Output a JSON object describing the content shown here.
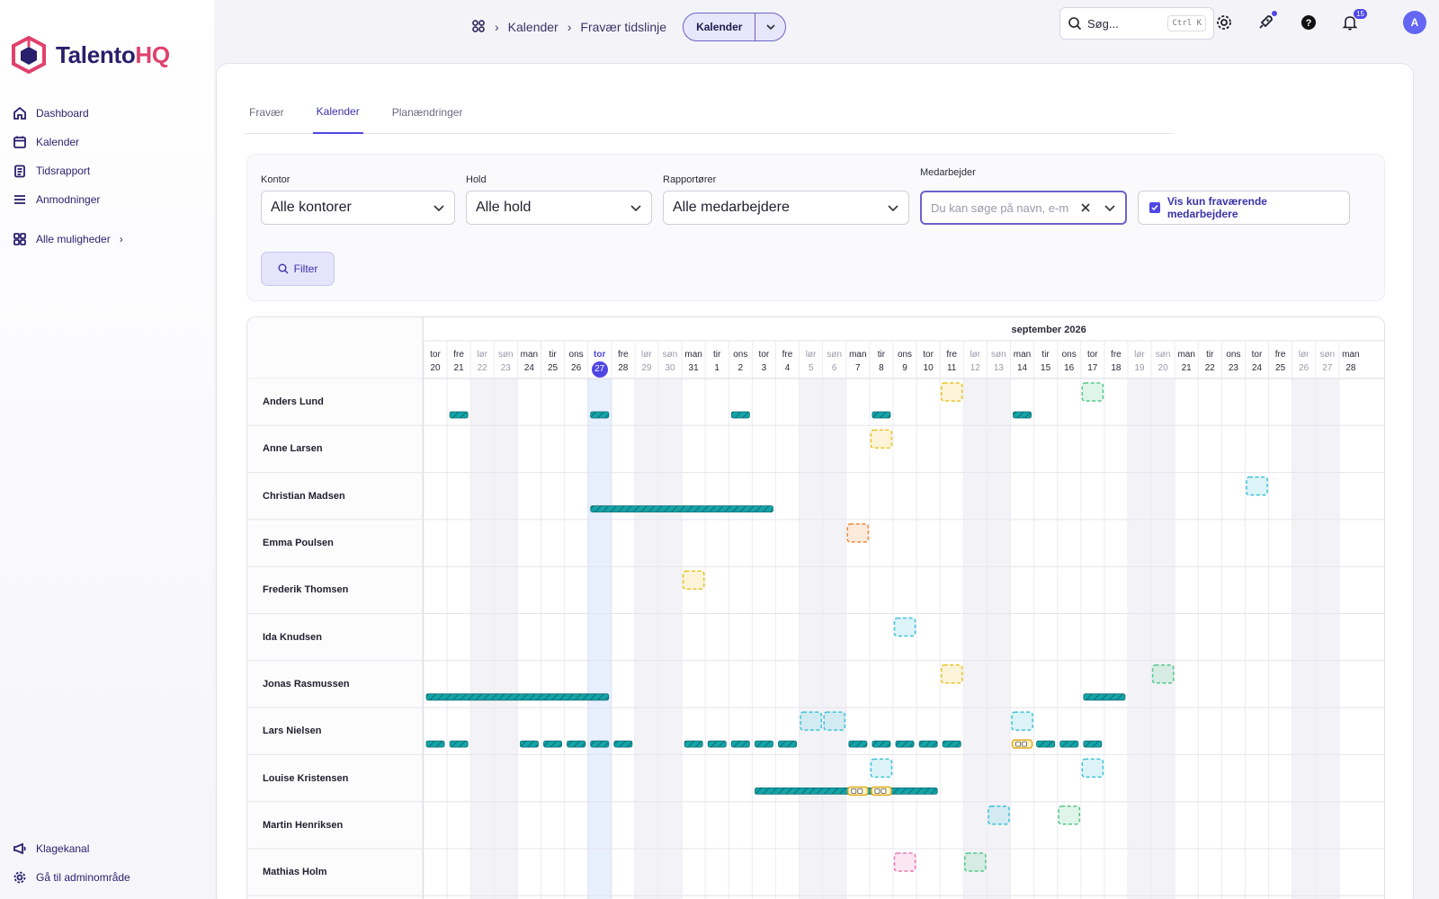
{
  "brand": {
    "name_part1": "Talento",
    "name_part2": "HQ"
  },
  "sidebar": {
    "items": [
      {
        "label": "Dashboard",
        "icon": "home-icon"
      },
      {
        "label": "Kalender",
        "icon": "calendar-icon"
      },
      {
        "label": "Tidsrapport",
        "icon": "clipboard-icon"
      },
      {
        "label": "Anmodninger",
        "icon": "list-icon"
      }
    ],
    "all_options": "Alle muligheder",
    "bottom": [
      {
        "label": "Klagekanal",
        "icon": "megaphone-icon"
      },
      {
        "label": "Gå til adminområde",
        "icon": "gear-icon"
      }
    ]
  },
  "topbar": {
    "breadcrumb": [
      "Kalender",
      "Fravær tidslinje"
    ],
    "view_button": "Kalender",
    "search_placeholder": "Søg...",
    "search_shortcut": "Ctrl K",
    "notification_count": "15",
    "avatar_initial": "A"
  },
  "tabs": [
    {
      "label": "Fravær",
      "active": false
    },
    {
      "label": "Kalender",
      "active": true
    },
    {
      "label": "Planændringer",
      "active": false
    }
  ],
  "filters": {
    "kontor": {
      "label": "Kontor",
      "value": "Alle kontorer"
    },
    "hold": {
      "label": "Hold",
      "value": "Alle hold"
    },
    "rapportorer": {
      "label": "Rapportører",
      "value": "Alle medarbejdere"
    },
    "medarbejder": {
      "label": "Medarbejder",
      "placeholder": "Du kan søge på navn, e-m"
    },
    "only_absent": "Vis kun fraværende medarbejdere",
    "filter_button": "Filter"
  },
  "timeline": {
    "month_label": "september 2026",
    "days": [
      {
        "w": "tor",
        "d": "20"
      },
      {
        "w": "fre",
        "d": "21"
      },
      {
        "w": "lør",
        "d": "22",
        "we": true
      },
      {
        "w": "søn",
        "d": "23",
        "we": true
      },
      {
        "w": "man",
        "d": "24"
      },
      {
        "w": "tir",
        "d": "25"
      },
      {
        "w": "ons",
        "d": "26"
      },
      {
        "w": "tor",
        "d": "27",
        "today": true
      },
      {
        "w": "fre",
        "d": "28"
      },
      {
        "w": "lør",
        "d": "29",
        "we": true
      },
      {
        "w": "søn",
        "d": "30",
        "we": true
      },
      {
        "w": "man",
        "d": "31"
      },
      {
        "w": "tir",
        "d": "1"
      },
      {
        "w": "ons",
        "d": "2"
      },
      {
        "w": "tor",
        "d": "3"
      },
      {
        "w": "fre",
        "d": "4"
      },
      {
        "w": "lør",
        "d": "5",
        "we": true
      },
      {
        "w": "søn",
        "d": "6",
        "we": true
      },
      {
        "w": "man",
        "d": "7"
      },
      {
        "w": "tir",
        "d": "8"
      },
      {
        "w": "ons",
        "d": "9"
      },
      {
        "w": "tor",
        "d": "10"
      },
      {
        "w": "fre",
        "d": "11"
      },
      {
        "w": "lør",
        "d": "12",
        "we": true
      },
      {
        "w": "søn",
        "d": "13",
        "we": true
      },
      {
        "w": "man",
        "d": "14"
      },
      {
        "w": "tir",
        "d": "15"
      },
      {
        "w": "ons",
        "d": "16"
      },
      {
        "w": "tor",
        "d": "17"
      },
      {
        "w": "fre",
        "d": "18"
      },
      {
        "w": "lør",
        "d": "19",
        "we": true
      },
      {
        "w": "søn",
        "d": "20",
        "we": true
      },
      {
        "w": "man",
        "d": "21"
      },
      {
        "w": "tir",
        "d": "22"
      },
      {
        "w": "ons",
        "d": "23"
      },
      {
        "w": "tor",
        "d": "24"
      },
      {
        "w": "fre",
        "d": "25"
      },
      {
        "w": "lør",
        "d": "26",
        "we": true
      },
      {
        "w": "søn",
        "d": "27",
        "we": true
      },
      {
        "w": "man",
        "d": "28"
      }
    ],
    "colors": {
      "bar": "#14a3a8",
      "yellow": "#e9c428",
      "green": "#53c98a",
      "cyan": "#3fc3d8",
      "orange": "#f08a3a",
      "pink": "#e979b8",
      "today_col": "#e8effd"
    },
    "employees": [
      {
        "name": "Anders Lund",
        "bars": [
          [
            1,
            1
          ],
          [
            7,
            7
          ],
          [
            13,
            13
          ],
          [
            19,
            19
          ],
          [
            25,
            25
          ]
        ],
        "boxes": [
          [
            22,
            "yellow"
          ],
          [
            28,
            "green"
          ]
        ]
      },
      {
        "name": "Anne Larsen",
        "bars": [],
        "boxes": [
          [
            19,
            "yellow"
          ]
        ]
      },
      {
        "name": "Christian Madsen",
        "bars": [
          [
            7,
            14
          ]
        ],
        "boxes": [
          [
            35,
            "cyan"
          ]
        ]
      },
      {
        "name": "Emma Poulsen",
        "bars": [],
        "boxes": [
          [
            18,
            "orange"
          ]
        ]
      },
      {
        "name": "Frederik Thomsen",
        "bars": [],
        "boxes": [
          [
            11,
            "yellow"
          ]
        ]
      },
      {
        "name": "Ida Knudsen",
        "bars": [],
        "boxes": [
          [
            20,
            "cyan"
          ]
        ]
      },
      {
        "name": "Jonas Rasmussen",
        "bars": [
          [
            0,
            7
          ],
          [
            28,
            29
          ]
        ],
        "boxes": [
          [
            22,
            "yellow"
          ],
          [
            31,
            "green"
          ]
        ]
      },
      {
        "name": "Lars Nielsen",
        "bars": [
          [
            0,
            0
          ],
          [
            1,
            1
          ],
          [
            4,
            4
          ],
          [
            5,
            5
          ],
          [
            6,
            6
          ],
          [
            7,
            7
          ],
          [
            8,
            8
          ],
          [
            11,
            11
          ],
          [
            12,
            12
          ],
          [
            13,
            13
          ],
          [
            14,
            14
          ],
          [
            15,
            15
          ],
          [
            18,
            18
          ],
          [
            19,
            19
          ],
          [
            20,
            20
          ],
          [
            21,
            21
          ],
          [
            22,
            22
          ],
          [
            25,
            25
          ],
          [
            26,
            26
          ],
          [
            27,
            27
          ],
          [
            28,
            28
          ]
        ],
        "boxes": [
          [
            16,
            "cyan"
          ],
          [
            17,
            "cyan"
          ],
          [
            25,
            "cyan"
          ]
        ],
        "marked": [
          25
        ]
      },
      {
        "name": "Louise Kristensen",
        "bars": [
          [
            14,
            21
          ]
        ],
        "boxes": [
          [
            19,
            "cyan"
          ],
          [
            28,
            "cyan"
          ]
        ],
        "marked": [
          18,
          19
        ]
      },
      {
        "name": "Martin Henriksen",
        "bars": [],
        "boxes": [
          [
            24,
            "cyan"
          ],
          [
            27,
            "green"
          ]
        ]
      },
      {
        "name": "Mathias Holm",
        "bars": [],
        "boxes": [
          [
            20,
            "pink"
          ],
          [
            23,
            "green"
          ]
        ]
      }
    ]
  }
}
